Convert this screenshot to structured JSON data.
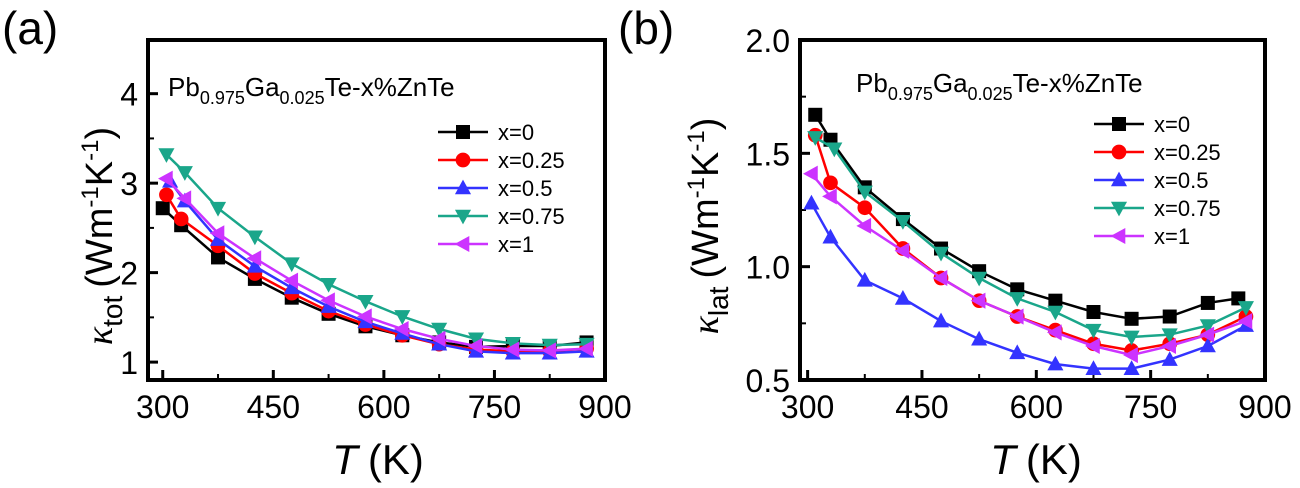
{
  "panels": [
    {
      "panel_label": "(a)",
      "composition": {
        "prefix": "Pb",
        "sub1": "0.975",
        "mid": "Ga",
        "sub2": "0.025",
        "suffix": "Te-x%ZnTe"
      },
      "ylabel": {
        "symbol": "κ",
        "sub": "tot",
        "unit_pre": "(Wm",
        "sup1": "-1",
        "unit_mid": "K",
        "sup2": "-1",
        "unit_post": ")"
      },
      "xlabel": {
        "symbol": "T",
        "unit": "(K)"
      }
    },
    {
      "panel_label": "(b)",
      "composition": {
        "prefix": "Pb",
        "sub1": "0.975",
        "mid": "Ga",
        "sub2": "0.025",
        "suffix": "Te-x%ZnTe"
      },
      "ylabel": {
        "symbol": "κ",
        "sub": "lat",
        "unit_pre": "(Wm",
        "sup1": "-1",
        "unit_mid": "K",
        "sup2": "-1",
        "unit_post": ")"
      },
      "xlabel": {
        "symbol": "T",
        "unit": "(K)"
      }
    }
  ],
  "chart_data": [
    {
      "type": "line",
      "title": "",
      "xlabel": "T (K)",
      "ylabel": "κtot (Wm-1K-1)",
      "xlim": [
        280,
        900
      ],
      "ylim": [
        0.8,
        4.6
      ],
      "xticks": [
        300,
        450,
        600,
        750,
        900
      ],
      "yticks": [
        1,
        2,
        3,
        4
      ],
      "legend_position": "top-right",
      "series": [
        {
          "name": "x=0",
          "color": "#000000",
          "marker": "square",
          "x": [
            300,
            325,
            375,
            425,
            475,
            525,
            575,
            625,
            675,
            725,
            775,
            825,
            875
          ],
          "y": [
            2.72,
            2.53,
            2.17,
            1.93,
            1.72,
            1.54,
            1.4,
            1.3,
            1.22,
            1.17,
            1.18,
            1.18,
            1.22
          ]
        },
        {
          "name": "x=0.25",
          "color": "#ff0000",
          "marker": "circle",
          "x": [
            305,
            325,
            375,
            425,
            475,
            525,
            575,
            625,
            675,
            725,
            775,
            825,
            875
          ],
          "y": [
            2.87,
            2.6,
            2.3,
            1.99,
            1.77,
            1.57,
            1.42,
            1.3,
            1.2,
            1.14,
            1.12,
            1.12,
            1.15
          ]
        },
        {
          "name": "x=0.5",
          "color": "#3333ff",
          "marker": "triangle-up",
          "x": [
            310,
            330,
            375,
            425,
            475,
            525,
            575,
            625,
            675,
            725,
            775,
            825,
            875
          ],
          "y": [
            3.02,
            2.8,
            2.37,
            2.07,
            1.83,
            1.62,
            1.45,
            1.32,
            1.2,
            1.12,
            1.1,
            1.1,
            1.12
          ]
        },
        {
          "name": "x=0.75",
          "color": "#1aa68a",
          "marker": "triangle-down",
          "x": [
            305,
            330,
            375,
            425,
            475,
            525,
            575,
            625,
            675,
            725,
            775,
            825,
            875
          ],
          "y": [
            3.32,
            3.12,
            2.72,
            2.4,
            2.1,
            1.87,
            1.68,
            1.51,
            1.37,
            1.26,
            1.21,
            1.19,
            1.2
          ]
        },
        {
          "name": "x=1",
          "color": "#cc33ff",
          "marker": "triangle-left",
          "x": [
            305,
            330,
            375,
            425,
            475,
            525,
            575,
            625,
            675,
            725,
            775,
            825,
            875
          ],
          "y": [
            3.05,
            2.83,
            2.44,
            2.16,
            1.91,
            1.69,
            1.51,
            1.37,
            1.26,
            1.18,
            1.14,
            1.13,
            1.15
          ]
        }
      ]
    },
    {
      "type": "line",
      "title": "",
      "xlabel": "T (K)",
      "ylabel": "κlat (Wm-1K-1)",
      "xlim": [
        290,
        900
      ],
      "ylim": [
        0.5,
        2.0
      ],
      "xticks": [
        300,
        450,
        600,
        750,
        900
      ],
      "yticks": [
        0.5,
        1.0,
        1.5,
        2.0
      ],
      "legend_position": "top-right",
      "series": [
        {
          "name": "x=0",
          "color": "#000000",
          "marker": "square",
          "x": [
            310,
            330,
            375,
            425,
            475,
            525,
            575,
            625,
            675,
            725,
            775,
            825,
            865
          ],
          "y": [
            1.67,
            1.56,
            1.35,
            1.21,
            1.08,
            0.98,
            0.9,
            0.85,
            0.8,
            0.77,
            0.78,
            0.84,
            0.86
          ]
        },
        {
          "name": "x=0.25",
          "color": "#ff0000",
          "marker": "circle",
          "x": [
            310,
            330,
            375,
            425,
            475,
            525,
            575,
            625,
            675,
            725,
            775,
            825,
            875
          ],
          "y": [
            1.58,
            1.37,
            1.26,
            1.08,
            0.95,
            0.85,
            0.78,
            0.72,
            0.66,
            0.63,
            0.66,
            0.7,
            0.78
          ]
        },
        {
          "name": "x=0.5",
          "color": "#3333ff",
          "marker": "triangle-up",
          "x": [
            305,
            330,
            375,
            425,
            475,
            525,
            575,
            625,
            675,
            725,
            775,
            825,
            875
          ],
          "y": [
            1.28,
            1.13,
            0.94,
            0.86,
            0.76,
            0.68,
            0.62,
            0.57,
            0.55,
            0.55,
            0.59,
            0.65,
            0.74
          ]
        },
        {
          "name": "x=0.75",
          "color": "#1aa68a",
          "marker": "triangle-down",
          "x": [
            310,
            335,
            375,
            425,
            475,
            525,
            575,
            625,
            675,
            725,
            775,
            825,
            875
          ],
          "y": [
            1.57,
            1.52,
            1.33,
            1.2,
            1.06,
            0.95,
            0.86,
            0.8,
            0.72,
            0.69,
            0.7,
            0.74,
            0.82
          ]
        },
        {
          "name": "x=1",
          "color": "#cc33ff",
          "marker": "triangle-left",
          "x": [
            305,
            330,
            375,
            425,
            475,
            525,
            575,
            625,
            675,
            725,
            775,
            825,
            875
          ],
          "y": [
            1.41,
            1.31,
            1.18,
            1.07,
            0.95,
            0.85,
            0.78,
            0.71,
            0.65,
            0.61,
            0.65,
            0.7,
            0.76
          ]
        }
      ]
    }
  ]
}
